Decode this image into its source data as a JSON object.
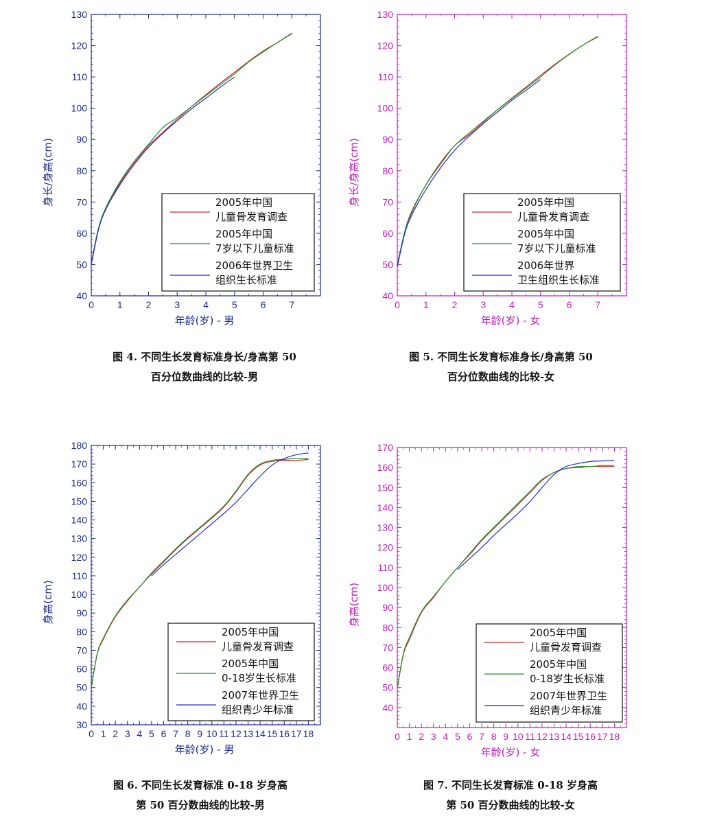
{
  "chart_data": [
    {
      "id": "fig4",
      "type": "line",
      "color": "#1a2a8a",
      "xlim": [
        0,
        8
      ],
      "ylim": [
        40,
        130
      ],
      "xticks": [
        0,
        1,
        2,
        3,
        4,
        5,
        6,
        7
      ],
      "yticks": [
        40,
        50,
        60,
        70,
        80,
        90,
        100,
        110,
        120,
        130
      ],
      "xlabel": "年龄(岁) - 男",
      "ylabel": "身长/身高(cm)",
      "legend": [
        {
          "line1": "2005年中国",
          "line2": "儿童骨发育调查",
          "color": "#d42020"
        },
        {
          "line1": "2005年中国",
          "line2": "7岁以下儿童标准",
          "color": "#1f8f2a"
        },
        {
          "line1": "2006年世界卫生",
          "line2": "组织生长标准",
          "color": "#1c2fd0"
        }
      ],
      "series": [
        {
          "name": "2005年中国 儿童骨发育调查",
          "color": "#d42020",
          "x": [
            0,
            0.25,
            0.5,
            1,
            1.5,
            2,
            2.5,
            3,
            3.5,
            4,
            4.5,
            5,
            5.5,
            6,
            6.5,
            7
          ],
          "y": [
            50.5,
            61.5,
            67.5,
            76,
            82.5,
            88,
            92.3,
            96.5,
            100.5,
            104.3,
            108,
            111.5,
            115,
            118.3,
            121,
            124
          ]
        },
        {
          "name": "2005年中国 7岁以下儿童标准",
          "color": "#1f8f2a",
          "x": [
            0,
            0.25,
            0.5,
            1,
            1.5,
            2,
            2.5,
            3,
            3.5,
            4,
            4.5,
            5,
            5.5,
            6,
            6.5,
            7
          ],
          "y": [
            50.4,
            61.5,
            68,
            76.5,
            83,
            88.5,
            93.8,
            97,
            100.5,
            104,
            107.5,
            111,
            114.8,
            118,
            121,
            123.8
          ]
        },
        {
          "name": "2006年世界卫生组织生长标准",
          "color": "#1c2fd0",
          "x": [
            0,
            0.25,
            0.5,
            1,
            1.5,
            2,
            2.5,
            3,
            3.5,
            4,
            4.5,
            5
          ],
          "y": [
            49.9,
            61,
            67.5,
            75.5,
            82,
            87.5,
            92,
            96,
            99.8,
            103.2,
            106.7,
            110
          ]
        }
      ]
    },
    {
      "id": "fig5",
      "type": "line",
      "color": "#c21cc2",
      "xlim": [
        0,
        8
      ],
      "ylim": [
        40,
        130
      ],
      "xticks": [
        0,
        1,
        2,
        3,
        4,
        5,
        6,
        7
      ],
      "yticks": [
        40,
        50,
        60,
        70,
        80,
        90,
        100,
        110,
        120,
        130
      ],
      "xlabel": "年龄(岁) - 女",
      "ylabel": "身长/身高(cm)",
      "legend": [
        {
          "line1": "2005年中国",
          "line2": "儿童骨发育调查",
          "color": "#d42020"
        },
        {
          "line1": "2005年中国",
          "line2": "7岁以下儿童标准",
          "color": "#1f8f2a"
        },
        {
          "line1": "2006年世界",
          "line2": "卫生组织生长标准",
          "color": "#1c2fd0"
        }
      ],
      "series": [
        {
          "name": "2005年中国 儿童骨发育调查",
          "color": "#d42020",
          "x": [
            0,
            0.25,
            0.5,
            1,
            1.5,
            2,
            2.5,
            3,
            3.5,
            4,
            4.5,
            5,
            5.5,
            6,
            6.5,
            7
          ],
          "y": [
            49.8,
            60,
            66.5,
            75.5,
            82,
            88,
            91.5,
            95.5,
            99.5,
            103.2,
            106.8,
            110.5,
            114,
            117.3,
            120.3,
            123
          ]
        },
        {
          "name": "2005年中国 7岁以下儿童标准",
          "color": "#1f8f2a",
          "x": [
            0,
            0.25,
            0.5,
            1,
            1.5,
            2,
            2.5,
            3,
            3.5,
            4,
            4.5,
            5,
            5.5,
            6,
            6.5,
            7
          ],
          "y": [
            49.8,
            60.2,
            67,
            75.5,
            82.5,
            88,
            92,
            95.8,
            99.5,
            103,
            106.5,
            110,
            113.8,
            117.2,
            120.3,
            122.8
          ]
        },
        {
          "name": "2006年世界卫生组织生长标准",
          "color": "#1c2fd0",
          "x": [
            0,
            0.25,
            0.5,
            1,
            1.5,
            2,
            2.5,
            3,
            3.5,
            4,
            4.5,
            5
          ],
          "y": [
            49.2,
            59.5,
            65.7,
            74,
            80.8,
            86.5,
            91,
            95,
            98.8,
            102.5,
            105.8,
            109.2
          ]
        }
      ]
    },
    {
      "id": "fig6",
      "type": "line",
      "color": "#1a2a8a",
      "xlim": [
        0,
        19
      ],
      "ylim": [
        30,
        180
      ],
      "xticks": [
        0,
        1,
        2,
        3,
        4,
        5,
        6,
        7,
        8,
        9,
        10,
        11,
        12,
        13,
        14,
        15,
        16,
        17,
        18
      ],
      "yticks": [
        30,
        40,
        50,
        60,
        70,
        80,
        90,
        100,
        110,
        120,
        130,
        140,
        150,
        160,
        170,
        180
      ],
      "xlabel": "年龄(岁) - 男",
      "ylabel": "身高(cm)",
      "legend": [
        {
          "line1": "2005年中国",
          "line2": "儿童骨发育调查",
          "color": "#d42020"
        },
        {
          "line1": "2005年中国",
          "line2": "0-18岁生长标准",
          "color": "#1f8f2a"
        },
        {
          "line1": "2007年世界卫生",
          "line2": "组织青少年标准",
          "color": "#1c2fd0"
        }
      ],
      "series": [
        {
          "name": "2005年中国 儿童骨发育调查",
          "color": "#d42020",
          "x": [
            0,
            0.5,
            1,
            2,
            3,
            4,
            5,
            6,
            7,
            8,
            9,
            10,
            11,
            12,
            13,
            14,
            15,
            16,
            17,
            18
          ],
          "y": [
            50,
            68,
            76,
            88,
            96.5,
            104,
            111,
            117.5,
            124,
            130,
            135.5,
            141,
            147,
            155,
            164,
            169.5,
            171.5,
            172,
            172,
            172.5
          ]
        },
        {
          "name": "2005年中国 0-18岁生长标准",
          "color": "#1f8f2a",
          "x": [
            0,
            0.5,
            1,
            2,
            3,
            4,
            5,
            6,
            7,
            8,
            9,
            10,
            11,
            12,
            13,
            14,
            15,
            16,
            17,
            18
          ],
          "y": [
            50,
            68.5,
            76.5,
            88.5,
            97,
            104,
            111.5,
            118,
            124.5,
            130.5,
            136,
            141.5,
            147.5,
            155.5,
            164.5,
            170,
            172,
            172.5,
            173,
            173
          ]
        },
        {
          "name": "2007年世界卫生组织青少年标准",
          "color": "#1c2fd0",
          "x": [
            5,
            6,
            7,
            8,
            9,
            10,
            11,
            12,
            13,
            14,
            15,
            16,
            17,
            18
          ],
          "y": [
            110,
            116,
            121.5,
            127,
            132.5,
            138,
            143.5,
            149.5,
            156.5,
            163.5,
            169.5,
            173,
            175,
            176
          ]
        }
      ]
    },
    {
      "id": "fig7",
      "type": "line",
      "color": "#c21cc2",
      "xlim": [
        0,
        19
      ],
      "ylim": [
        30,
        170
      ],
      "xticks": [
        0,
        1,
        2,
        3,
        4,
        5,
        6,
        7,
        8,
        9,
        10,
        11,
        12,
        13,
        14,
        15,
        16,
        17,
        18
      ],
      "yticks": [
        40,
        50,
        60,
        70,
        80,
        90,
        100,
        110,
        120,
        130,
        140,
        150,
        160,
        170
      ],
      "xlabel": "年龄(岁) - 女",
      "ylabel": "身高(cm)",
      "legend": [
        {
          "line1": "2005年中国",
          "line2": "儿童骨发育调查",
          "color": "#d42020"
        },
        {
          "line1": "2005年中国",
          "line2": "0-18岁生长标准",
          "color": "#1f8f2a"
        },
        {
          "line1": "2007年世界卫生",
          "line2": "组织青少年标准",
          "color": "#1c2fd0"
        }
      ],
      "series": [
        {
          "name": "2005年中国 儿童骨发育调查",
          "color": "#d42020",
          "x": [
            0,
            0.5,
            1,
            2,
            3,
            4,
            5,
            6,
            7,
            8,
            9,
            10,
            11,
            12,
            13,
            14,
            15,
            16,
            17,
            18
          ],
          "y": [
            49.5,
            66.5,
            74,
            87.5,
            95,
            103,
            110,
            116.5,
            123.5,
            129.5,
            135.5,
            141.5,
            147.5,
            153.5,
            157.5,
            159.5,
            160,
            160.5,
            160.5,
            160.5
          ]
        },
        {
          "name": "2005年中国 0-18岁生长标准",
          "color": "#1f8f2a",
          "x": [
            0,
            0.5,
            1,
            2,
            3,
            4,
            5,
            6,
            7,
            8,
            9,
            10,
            11,
            12,
            13,
            14,
            15,
            16,
            17,
            18
          ],
          "y": [
            49.7,
            67,
            75,
            88,
            95.5,
            103,
            110,
            117,
            124,
            130,
            136,
            142,
            148,
            154,
            157.5,
            159.5,
            160.5,
            160.5,
            161,
            161
          ]
        },
        {
          "name": "2007年世界卫生组织青少年标准",
          "color": "#1c2fd0",
          "x": [
            5,
            6,
            7,
            8,
            9,
            10,
            11,
            12,
            13,
            14,
            15,
            16,
            17,
            18
          ],
          "y": [
            109,
            114.5,
            120,
            126,
            131.5,
            137,
            143,
            150,
            156.5,
            160.5,
            162,
            163,
            163.3,
            163.5
          ]
        }
      ]
    }
  ],
  "captions": {
    "fig4": {
      "line1": "图 4. 不同生长发育标准身长/身高第 50",
      "line2": "百分位数曲线的比较-男"
    },
    "fig5": {
      "line1": "图 5. 不同生长发育标准身长/身高第 50",
      "line2": "百分位数曲线的比较-女"
    },
    "fig6": {
      "line1": "图 6. 不同生长发育标准 0-18 岁身高",
      "line2": "第 50 百分数曲线的比较-男"
    },
    "fig7": {
      "line1": "图 7. 不同生长发育标准 0-18 岁身高",
      "line2": "第 50 百分数曲线的比较-女"
    }
  }
}
